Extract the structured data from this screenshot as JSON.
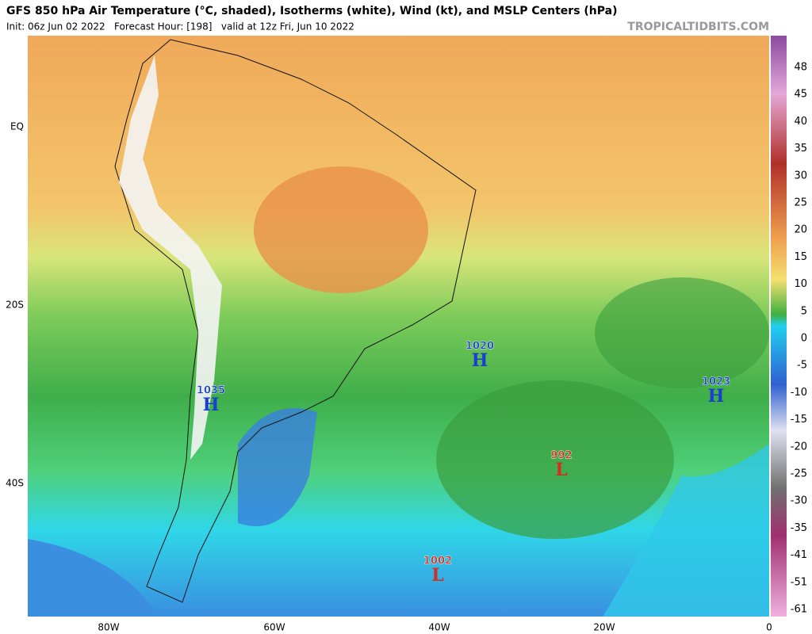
{
  "header": {
    "title": "GFS 850 hPa Air Temperature (°C, shaded), Isotherms (white), Wind (kt), and MSLP Centers (hPa)",
    "subtitle": "Init: 06z Jun 02 2022   Forecast Hour: [198]   valid at 12z Fri, Jun 10 2022",
    "watermark": "TROPICALTIDBITS.COM"
  },
  "map": {
    "lat_labels": [
      "EQ",
      "20S",
      "40S"
    ],
    "lon_labels": [
      "80W",
      "60W",
      "40W",
      "20W",
      "0"
    ],
    "centers": [
      {
        "pressure": "1020",
        "letter": "H"
      },
      {
        "pressure": "1035",
        "letter": "H"
      },
      {
        "pressure": "1023",
        "letter": "H"
      },
      {
        "pressure": "992",
        "letter": "L"
      },
      {
        "pressure": "1002",
        "letter": "L"
      }
    ]
  },
  "colorbar": {
    "labels": [
      "48",
      "45",
      "40",
      "35",
      "30",
      "25",
      "20",
      "15",
      "10",
      "5",
      "0",
      "-5",
      "-10",
      "-15",
      "-20",
      "-25",
      "-30",
      "-35",
      "-41",
      "-51",
      "-61"
    ]
  }
}
